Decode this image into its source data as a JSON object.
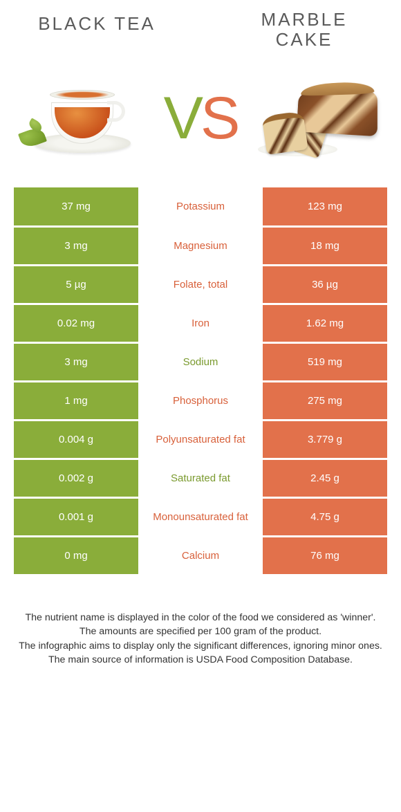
{
  "foods": {
    "left": {
      "title": "BLACK TEA"
    },
    "right": {
      "title": "MARBLE CAKE"
    }
  },
  "vs": {
    "v": "V",
    "s": "S"
  },
  "colors": {
    "green": "#8aad3a",
    "orange": "#e2714b",
    "label_green": "#7a9a2e",
    "label_orange": "#d8603a"
  },
  "rows": [
    {
      "nutrient": "Potassium",
      "left": "37 mg",
      "right": "123 mg",
      "winner": "right"
    },
    {
      "nutrient": "Magnesium",
      "left": "3 mg",
      "right": "18 mg",
      "winner": "right"
    },
    {
      "nutrient": "Folate, total",
      "left": "5 µg",
      "right": "36 µg",
      "winner": "right"
    },
    {
      "nutrient": "Iron",
      "left": "0.02 mg",
      "right": "1.62 mg",
      "winner": "right"
    },
    {
      "nutrient": "Sodium",
      "left": "3 mg",
      "right": "519 mg",
      "winner": "left"
    },
    {
      "nutrient": "Phosphorus",
      "left": "1 mg",
      "right": "275 mg",
      "winner": "right"
    },
    {
      "nutrient": "Polyunsaturated fat",
      "left": "0.004 g",
      "right": "3.779 g",
      "winner": "right"
    },
    {
      "nutrient": "Saturated fat",
      "left": "0.002 g",
      "right": "2.45 g",
      "winner": "left"
    },
    {
      "nutrient": "Monounsaturated fat",
      "left": "0.001 g",
      "right": "4.75 g",
      "winner": "right"
    },
    {
      "nutrient": "Calcium",
      "left": "0 mg",
      "right": "76 mg",
      "winner": "right"
    }
  ],
  "notes": [
    "The nutrient name is displayed in the color of the food we considered as 'winner'.",
    "The amounts are specified per 100 gram of the product.",
    "The infographic aims to display only the significant differences, ignoring minor ones.",
    "The main source of information is USDA Food Composition Database."
  ]
}
